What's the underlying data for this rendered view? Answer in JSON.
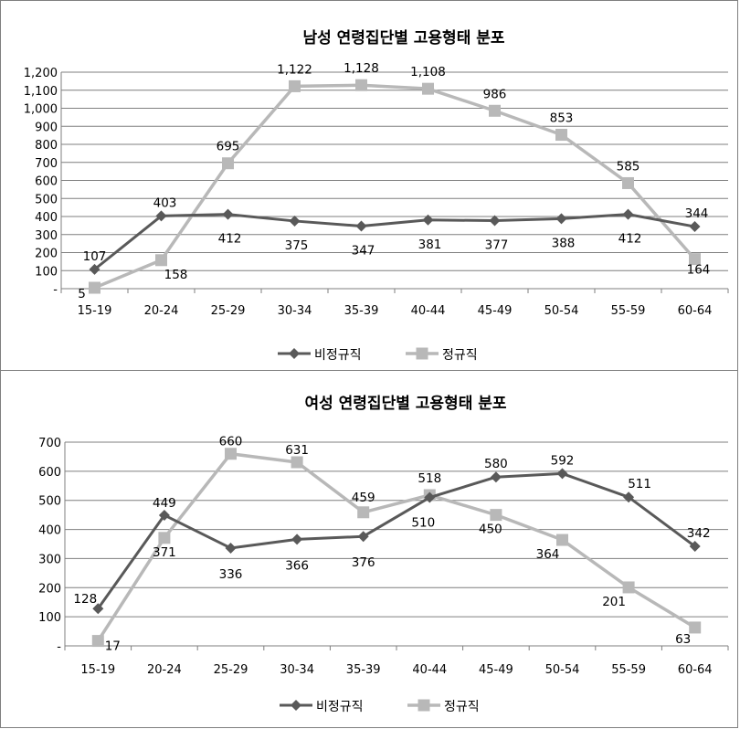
{
  "colors": {
    "series_dark": "#595959",
    "series_light": "#b8b8b8",
    "gridline": "#7f7f7f",
    "border": "#7f7f7f"
  },
  "chart_data": [
    {
      "type": "line",
      "title": "남성 연령집단별 고용형태 분포",
      "categories": [
        "15-19",
        "20-24",
        "25-29",
        "30-34",
        "35-39",
        "40-44",
        "45-49",
        "50-54",
        "55-59",
        "60-64"
      ],
      "ylim": [
        0,
        1200
      ],
      "ytick_labels": [
        "-",
        "100",
        "200",
        "300",
        "400",
        "500",
        "600",
        "700",
        "800",
        "900",
        "1,000",
        "1,100",
        "1,200"
      ],
      "grid": true,
      "legend": "bottom",
      "series": [
        {
          "name": "비정규직",
          "marker": "diamond",
          "values": [
            107,
            403,
            412,
            375,
            347,
            381,
            377,
            388,
            412,
            344
          ],
          "labels": [
            "107",
            "403",
            "412",
            "375",
            "347",
            "381",
            "377",
            "388",
            "412",
            "344"
          ]
        },
        {
          "name": "정규직",
          "marker": "square",
          "values": [
            5,
            158,
            695,
            1122,
            1128,
            1108,
            986,
            853,
            585,
            164
          ],
          "labels": [
            "5",
            "158",
            "695",
            "1,122",
            "1,128",
            "1,108",
            "986",
            "853",
            "585",
            "164"
          ]
        }
      ]
    },
    {
      "type": "line",
      "title": "여성 연령집단별 고용형태 분포",
      "categories": [
        "15-19",
        "20-24",
        "25-29",
        "30-34",
        "35-39",
        "40-44",
        "45-49",
        "50-54",
        "55-59",
        "60-64"
      ],
      "ylim": [
        0,
        700
      ],
      "ytick_labels": [
        "-",
        "100",
        "200",
        "300",
        "400",
        "500",
        "600",
        "700"
      ],
      "grid": true,
      "legend": "bottom",
      "series": [
        {
          "name": "비정규직",
          "marker": "diamond",
          "values": [
            128,
            449,
            336,
            366,
            376,
            510,
            580,
            592,
            511,
            342
          ],
          "labels": [
            "128",
            "449",
            "336",
            "366",
            "376",
            "510",
            "580",
            "592",
            "511",
            "342"
          ]
        },
        {
          "name": "정규직",
          "marker": "square",
          "values": [
            17,
            371,
            660,
            631,
            459,
            518,
            450,
            364,
            201,
            63
          ],
          "labels": [
            "17",
            "371",
            "660",
            "631",
            "459",
            "518",
            "450",
            "364",
            "201",
            "63"
          ]
        }
      ]
    }
  ]
}
